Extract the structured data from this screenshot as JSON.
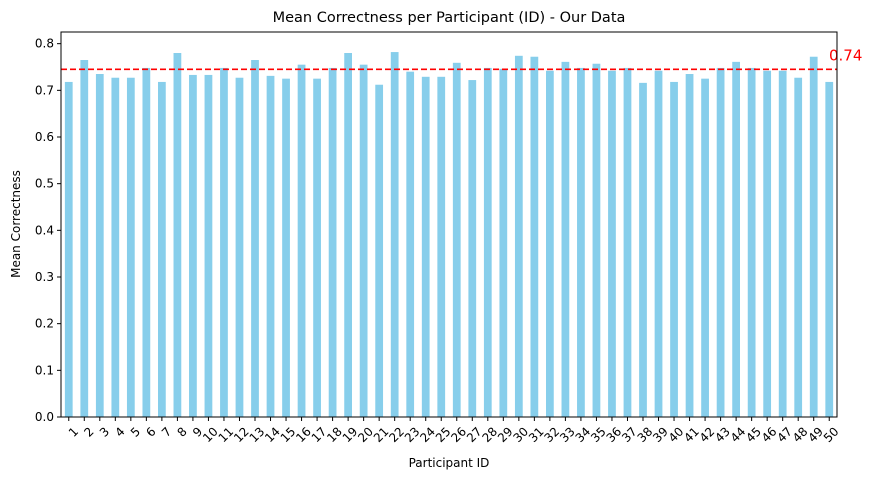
{
  "chart_data": {
    "type": "bar",
    "title": "Mean Correctness per Participant (ID) - Our Data",
    "xlabel": "Participant ID",
    "ylabel": "Mean Correctness",
    "ylim": [
      0,
      0.825
    ],
    "yticks": [
      "0.0",
      "0.1",
      "0.2",
      "0.3",
      "0.4",
      "0.5",
      "0.6",
      "0.7",
      "0.8"
    ],
    "grid": false,
    "bar_color": "#87ceeb",
    "categories": [
      "1",
      "2",
      "3",
      "4",
      "5",
      "6",
      "7",
      "8",
      "9",
      "10",
      "11",
      "12",
      "13",
      "14",
      "15",
      "16",
      "17",
      "18",
      "19",
      "20",
      "21",
      "22",
      "23",
      "24",
      "25",
      "26",
      "27",
      "28",
      "29",
      "30",
      "31",
      "32",
      "33",
      "34",
      "35",
      "36",
      "37",
      "38",
      "39",
      "40",
      "41",
      "42",
      "43",
      "44",
      "45",
      "46",
      "47",
      "48",
      "49",
      "50"
    ],
    "values": [
      0.718,
      0.765,
      0.735,
      0.727,
      0.727,
      0.748,
      0.718,
      0.78,
      0.733,
      0.733,
      0.748,
      0.727,
      0.765,
      0.731,
      0.725,
      0.755,
      0.725,
      0.748,
      0.78,
      0.755,
      0.712,
      0.782,
      0.74,
      0.729,
      0.729,
      0.759,
      0.722,
      0.748,
      0.746,
      0.774,
      0.772,
      0.742,
      0.761,
      0.748,
      0.757,
      0.742,
      0.748,
      0.716,
      0.742,
      0.718,
      0.735,
      0.725,
      0.748,
      0.761,
      0.748,
      0.742,
      0.742,
      0.727,
      0.772,
      0.718
    ],
    "reference_line": {
      "value": 0.745,
      "label": "0.74",
      "color": "#ff0000",
      "style": "dashed"
    }
  }
}
